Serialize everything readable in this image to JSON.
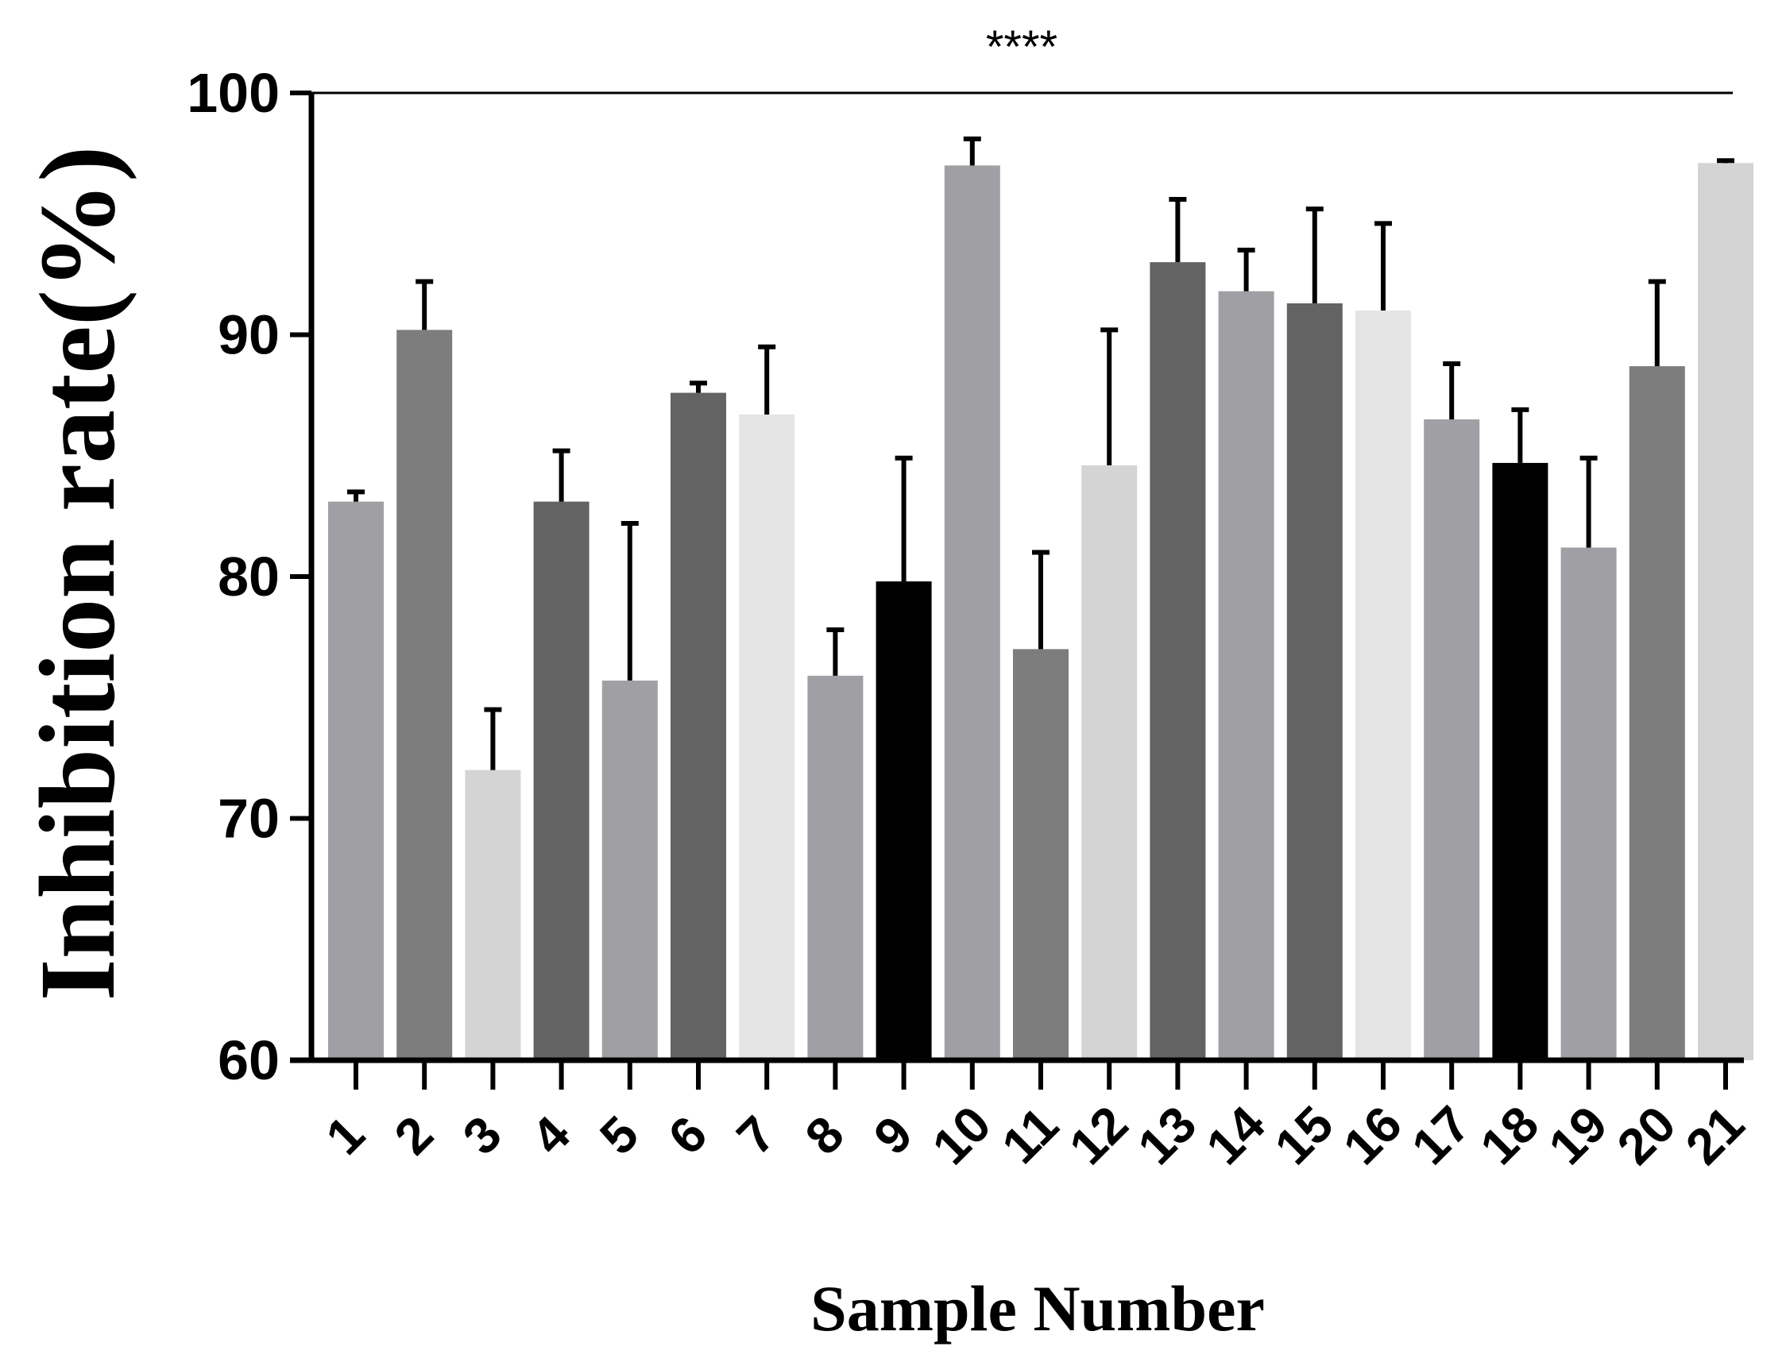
{
  "chart_data": {
    "type": "bar",
    "title": "",
    "xlabel": "Sample Number",
    "ylabel": "Inhibition rate(%)",
    "ylim": [
      60,
      100
    ],
    "yticks": [
      60,
      70,
      80,
      90,
      100
    ],
    "grid": false,
    "annotation": "****",
    "categories": [
      "1",
      "2",
      "3",
      "4",
      "5",
      "6",
      "7",
      "8",
      "9",
      "10",
      "11",
      "12",
      "13",
      "14",
      "15",
      "16",
      "17",
      "18",
      "19",
      "20",
      "21"
    ],
    "values": [
      83.1,
      90.2,
      72.0,
      83.1,
      75.7,
      87.6,
      86.7,
      75.9,
      79.8,
      97.0,
      77.0,
      84.6,
      93.0,
      91.8,
      91.3,
      91.0,
      86.5,
      84.7,
      81.2,
      88.7,
      97.1
    ],
    "errors": [
      0.4,
      2.0,
      2.5,
      2.1,
      6.5,
      0.4,
      2.8,
      1.9,
      5.1,
      1.1,
      4.0,
      5.6,
      2.6,
      1.7,
      3.9,
      3.6,
      2.3,
      2.2,
      3.7,
      3.5,
      0.1
    ],
    "bar_colors": [
      "#a0a0a4",
      "#7d7d7d",
      "#d4d4d4",
      "#636363",
      "#a0a0a4",
      "#636363",
      "#e4e4e4",
      "#a0a0a4",
      "#000000",
      "#a0a0a4",
      "#7d7d7d",
      "#d4d4d4",
      "#636363",
      "#a0a0a4",
      "#636363",
      "#e4e4e4",
      "#a0a0a4",
      "#000000",
      "#a0a0a4",
      "#7d7d7d",
      "#d4d4d4"
    ]
  }
}
